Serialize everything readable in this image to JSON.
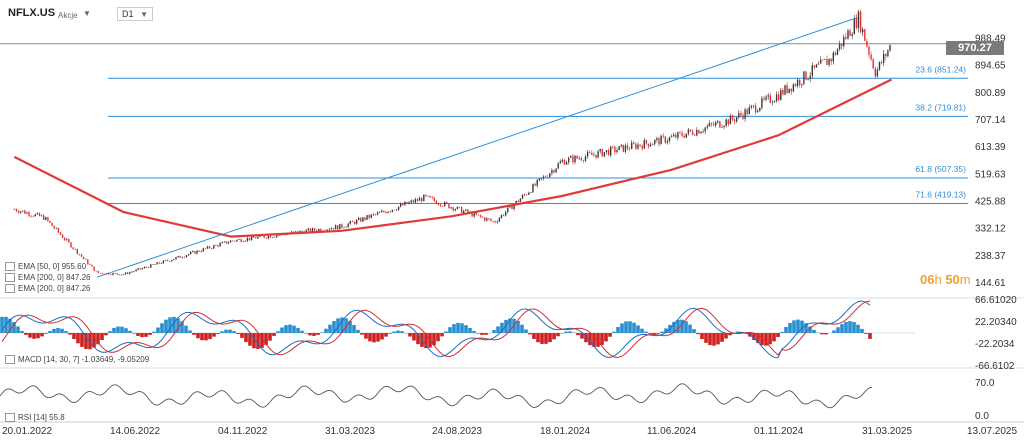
{
  "header": {
    "symbol": "NFLX.US",
    "instrument_type": "Akcje",
    "timeframe": "D1"
  },
  "price_badge": "970.27",
  "timer": {
    "h": "06",
    "h_unit": "h",
    "m": "50",
    "m_unit": "m"
  },
  "colors": {
    "up": "#3a3a3a",
    "down": "#e03030",
    "ema200": "#e03a3a",
    "fib": "#2f8fd8",
    "macd_pos": "#2a90d0",
    "macd_neg": "#d02020",
    "rsi": "#555555"
  },
  "legends": {
    "ema50": "EMA [50, 0] 955.60",
    "ema200a": "EMA [200, 0] 847.26",
    "ema200b": "EMA [200, 0] 847.26",
    "macd": "MACD [14, 30, 7] -1.03649, -9.05209",
    "rsi": "RSI [14] 55.8"
  },
  "chart_data": [
    {
      "type": "line",
      "title": "NFLX.US",
      "x_tick_labels": [
        "20.01.2022",
        "14.06.2022",
        "04.11.2022",
        "31.03.2023",
        "24.08.2023",
        "18.01.2024",
        "11.06.2024",
        "01.11.2024",
        "31.03.2025",
        "13.07.2025"
      ],
      "y_tick_labels": [
        "988.49",
        "894.65",
        "800.89",
        "707.14",
        "613.39",
        "519.63",
        "425.88",
        "332.12",
        "238.37",
        "144.61"
      ],
      "ylim": [
        144.61,
        988.49
      ],
      "last_price": 970.27,
      "ema200_last": 847.26,
      "series": [
        {
          "name": "EMA [200, 0]",
          "x": [
            "2022-01-20",
            "2022-06-14",
            "2022-11-04",
            "2023-03-31",
            "2023-08-24",
            "2024-01-18",
            "2024-06-11",
            "2024-11-01",
            "2025-03-31"
          ],
          "y": [
            580,
            390,
            305,
            325,
            375,
            445,
            535,
            655,
            847
          ]
        },
        {
          "name": "price",
          "x": [
            "2022-01-20",
            "2022-03-01",
            "2022-05-10",
            "2022-06-14",
            "2022-11-04",
            "2023-03-31",
            "2023-07-20",
            "2023-10-20",
            "2024-01-18",
            "2024-06-11",
            "2024-09-01",
            "2024-11-01",
            "2025-01-10",
            "2025-02-15",
            "2025-03-10",
            "2025-03-31"
          ],
          "y": [
            400,
            370,
            180,
            175,
            290,
            340,
            440,
            355,
            565,
            645,
            710,
            795,
            920,
            1060,
            870,
            970
          ]
        }
      ],
      "fibonacci": [
        {
          "label": "23.6 (851.24)",
          "value": 851.24
        },
        {
          "label": "38.2 (719.81)",
          "value": 719.81
        },
        {
          "label": "61.8 (507.35)",
          "value": 507.35
        },
        {
          "label": "71.6 (419.13)",
          "value": 419.13
        }
      ]
    },
    {
      "type": "bar",
      "title": "MACD [14, 30, 7]",
      "y_tick_labels": [
        "66.61020",
        "22.20340",
        "-22.2034",
        "-66.6102"
      ],
      "ylim": [
        -66.6102,
        66.6102
      ],
      "values": [
        -1.03649,
        -9.05209
      ]
    },
    {
      "type": "line",
      "title": "RSI [14]",
      "y_tick_labels": [
        "70.0",
        "0.0"
      ],
      "ylim": [
        0,
        100
      ],
      "last": 55.8
    }
  ]
}
